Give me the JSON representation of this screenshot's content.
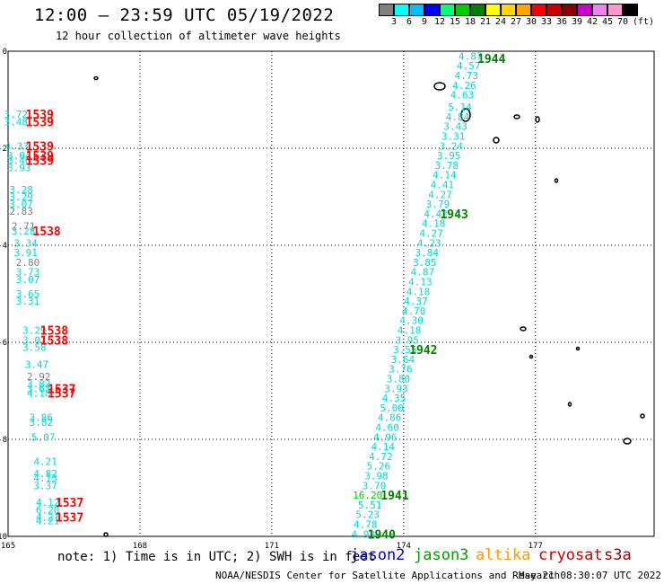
{
  "header": {
    "title": "12:00 — 23:59 UTC 05/19/2022",
    "subtitle": "12 hour collection of altimeter wave heights"
  },
  "legend": {
    "unit": "(ft)",
    "colors": [
      "#808080",
      "#00ffff",
      "#00bfff",
      "#0000ff",
      "#00ff7f",
      "#00cc00",
      "#008000",
      "#ffff00",
      "#ffd700",
      "#ffa500",
      "#ff0000",
      "#cc0000",
      "#8b0000",
      "#cc00cc",
      "#ee82ee",
      "#ff99cc",
      "#000000"
    ],
    "labels": [
      "3",
      "6",
      "9",
      "12",
      "15",
      "18",
      "21",
      "24",
      "27",
      "30",
      "33",
      "36",
      "39",
      "42",
      "45",
      "70"
    ]
  },
  "map": {
    "lon_ticks": [
      {
        "label": "165",
        "lon": 165
      },
      {
        "label": "168",
        "lon": 168
      },
      {
        "label": "171",
        "lon": 171
      },
      {
        "label": "174",
        "lon": 174
      },
      {
        "label": "177",
        "lon": 177
      }
    ],
    "lat_ticks": [
      {
        "label": "0",
        "lat": 0
      },
      {
        "label": "-2",
        "lat": -2
      },
      {
        "label": "-4",
        "lat": -4
      },
      {
        "label": "-6",
        "lat": -6
      },
      {
        "label": "-8",
        "lat": -8
      },
      {
        "label": "-10",
        "lat": -10
      }
    ],
    "extent": {
      "lon_min": 165,
      "lon_max": 179.7,
      "lat_min": -10,
      "lat_max": 0
    }
  },
  "track_values": [
    {
      "text": "4.87",
      "lon": 175.52,
      "lat": -0.1,
      "color": "#00d8d8"
    },
    {
      "text": "4.57",
      "lon": 175.48,
      "lat": -0.3,
      "color": "#00d8d8"
    },
    {
      "text": "4.73",
      "lon": 175.43,
      "lat": -0.5,
      "color": "#00d8d8"
    },
    {
      "text": "4.26",
      "lon": 175.38,
      "lat": -0.7,
      "color": "#00d8d8"
    },
    {
      "text": "4.63",
      "lon": 175.33,
      "lat": -0.9,
      "color": "#00d8d8"
    },
    {
      "text": "5.14",
      "lon": 175.28,
      "lat": -1.15,
      "color": "#00d8d8"
    },
    {
      "text": "4.84",
      "lon": 175.23,
      "lat": -1.35,
      "color": "#00d8d8"
    },
    {
      "text": "3.43",
      "lon": 175.18,
      "lat": -1.55,
      "color": "#00d8d8"
    },
    {
      "text": "3.31",
      "lon": 175.13,
      "lat": -1.75,
      "color": "#00d8d8"
    },
    {
      "text": "3.24",
      "lon": 175.08,
      "lat": -1.95,
      "color": "#00d8d8"
    },
    {
      "text": "3.95",
      "lon": 175.03,
      "lat": -2.15,
      "color": "#00d8d8"
    },
    {
      "text": "3.78",
      "lon": 174.98,
      "lat": -2.35,
      "color": "#00d8d8"
    },
    {
      "text": "4.14",
      "lon": 174.93,
      "lat": -2.55,
      "color": "#00d8d8"
    },
    {
      "text": "4.41",
      "lon": 174.88,
      "lat": -2.75,
      "color": "#00d8d8"
    },
    {
      "text": "4.27",
      "lon": 174.83,
      "lat": -2.95,
      "color": "#00d8d8"
    },
    {
      "text": "3.79",
      "lon": 174.78,
      "lat": -3.15,
      "color": "#00d8d8"
    },
    {
      "text": "4.42",
      "lon": 174.73,
      "lat": -3.35,
      "color": "#00d8d8"
    },
    {
      "text": "4.18",
      "lon": 174.68,
      "lat": -3.55,
      "color": "#00d8d8"
    },
    {
      "text": "4.27",
      "lon": 174.63,
      "lat": -3.75,
      "color": "#00d8d8"
    },
    {
      "text": "4.23",
      "lon": 174.58,
      "lat": -3.95,
      "color": "#00d8d8"
    },
    {
      "text": "3.84",
      "lon": 174.53,
      "lat": -4.15,
      "color": "#00d8d8"
    },
    {
      "text": "3.85",
      "lon": 174.48,
      "lat": -4.35,
      "color": "#00d8d8"
    },
    {
      "text": "4.87",
      "lon": 174.43,
      "lat": -4.55,
      "color": "#00d8d8"
    },
    {
      "text": "4.13",
      "lon": 174.38,
      "lat": -4.75,
      "color": "#00d8d8"
    },
    {
      "text": "4.18",
      "lon": 174.33,
      "lat": -4.95,
      "color": "#00d8d8"
    },
    {
      "text": "4.37",
      "lon": 174.28,
      "lat": -5.15,
      "color": "#00d8d8"
    },
    {
      "text": "4.70",
      "lon": 174.23,
      "lat": -5.35,
      "color": "#00d8d8"
    },
    {
      "text": "4.30",
      "lon": 174.18,
      "lat": -5.55,
      "color": "#00d8d8"
    },
    {
      "text": "4.18",
      "lon": 174.13,
      "lat": -5.75,
      "color": "#00d8d8"
    },
    {
      "text": "3.95",
      "lon": 174.08,
      "lat": -5.95,
      "color": "#00d8d8"
    },
    {
      "text": "3.55",
      "lon": 174.03,
      "lat": -6.15,
      "color": "#00d8d8"
    },
    {
      "text": "3.64",
      "lon": 173.98,
      "lat": -6.35,
      "color": "#00d8d8"
    },
    {
      "text": "3.76",
      "lon": 173.93,
      "lat": -6.55,
      "color": "#00d8d8"
    },
    {
      "text": "3.80",
      "lon": 173.88,
      "lat": -6.75,
      "color": "#00d8d8"
    },
    {
      "text": "3.93",
      "lon": 173.83,
      "lat": -6.95,
      "color": "#00d8d8"
    },
    {
      "text": "4.35",
      "lon": 173.78,
      "lat": -7.15,
      "color": "#00d8d8"
    },
    {
      "text": "5.00",
      "lon": 173.73,
      "lat": -7.35,
      "color": "#00d8d8"
    },
    {
      "text": "4.86",
      "lon": 173.68,
      "lat": -7.55,
      "color": "#00d8d8"
    },
    {
      "text": "4.60",
      "lon": 173.63,
      "lat": -7.75,
      "color": "#00d8d8"
    },
    {
      "text": "4.96",
      "lon": 173.58,
      "lat": -7.95,
      "color": "#00d8d8"
    },
    {
      "text": "4.14",
      "lon": 173.53,
      "lat": -8.15,
      "color": "#00d8d8"
    },
    {
      "text": "4.72",
      "lon": 173.48,
      "lat": -8.35,
      "color": "#00d8d8"
    },
    {
      "text": "5.26",
      "lon": 173.43,
      "lat": -8.55,
      "color": "#00d8d8"
    },
    {
      "text": "3.98",
      "lon": 173.38,
      "lat": -8.75,
      "color": "#00d8d8"
    },
    {
      "text": "3.70",
      "lon": 173.33,
      "lat": -8.95,
      "color": "#00d8d8"
    },
    {
      "text": "16.20",
      "lon": 173.18,
      "lat": -9.15,
      "color": "#00cc00"
    },
    {
      "text": "5.51",
      "lon": 173.23,
      "lat": -9.35,
      "color": "#00d8d8"
    },
    {
      "text": "5.23",
      "lon": 173.18,
      "lat": -9.55,
      "color": "#00d8d8"
    },
    {
      "text": "4.78",
      "lon": 173.13,
      "lat": -9.75,
      "color": "#00d8d8"
    },
    {
      "text": "4.93",
      "lon": 173.08,
      "lat": -9.95,
      "color": "#00d8d8"
    },
    {
      "text": "3.72",
      "lon": 165.18,
      "lat": -1.3,
      "color": "#00d8d8"
    },
    {
      "text": "3.48",
      "lon": 165.18,
      "lat": -1.45,
      "color": "#00d8d8"
    },
    {
      "text": "4.33",
      "lon": 165.2,
      "lat": -1.95,
      "color": "#00d8d8"
    },
    {
      "text": "3.04",
      "lon": 165.25,
      "lat": -2.15,
      "color": "#00d8d8"
    },
    {
      "text": "3.40",
      "lon": 165.25,
      "lat": -2.25,
      "color": "#00d8d8"
    },
    {
      "text": "3.93",
      "lon": 165.25,
      "lat": -2.4,
      "color": "#00d8d8"
    },
    {
      "text": "3.28",
      "lon": 165.3,
      "lat": -2.85,
      "color": "#00d8d8"
    },
    {
      "text": "3.29",
      "lon": 165.3,
      "lat": -3.0,
      "color": "#00d8d8"
    },
    {
      "text": "3.07",
      "lon": 165.3,
      "lat": -3.15,
      "color": "#00d8d8"
    },
    {
      "text": "2.83",
      "lon": 165.3,
      "lat": -3.3,
      "color": "#808080"
    },
    {
      "text": "2.71",
      "lon": 165.35,
      "lat": -3.6,
      "color": "#808080"
    },
    {
      "text": "3.28",
      "lon": 165.35,
      "lat": -3.7,
      "color": "#00d8d8"
    },
    {
      "text": "3.34",
      "lon": 165.4,
      "lat": -3.95,
      "color": "#00d8d8"
    },
    {
      "text": "3.91",
      "lon": 165.4,
      "lat": -4.15,
      "color": "#00d8d8"
    },
    {
      "text": "2.80",
      "lon": 165.45,
      "lat": -4.35,
      "color": "#808080"
    },
    {
      "text": "3.73",
      "lon": 165.45,
      "lat": -4.55,
      "color": "#00d8d8"
    },
    {
      "text": "3.07",
      "lon": 165.45,
      "lat": -4.7,
      "color": "#00d8d8"
    },
    {
      "text": "3.65",
      "lon": 165.45,
      "lat": -5.0,
      "color": "#00d8d8"
    },
    {
      "text": "3.31",
      "lon": 165.45,
      "lat": -5.15,
      "color": "#00d8d8"
    },
    {
      "text": "3.29",
      "lon": 165.6,
      "lat": -5.75,
      "color": "#00d8d8"
    },
    {
      "text": "3.02",
      "lon": 165.6,
      "lat": -5.95,
      "color": "#00d8d8"
    },
    {
      "text": "3.58",
      "lon": 165.6,
      "lat": -6.1,
      "color": "#00d8d8"
    },
    {
      "text": "3.47",
      "lon": 165.65,
      "lat": -6.45,
      "color": "#00d8d8"
    },
    {
      "text": "2.92",
      "lon": 165.7,
      "lat": -6.7,
      "color": "#808080"
    },
    {
      "text": "3.82",
      "lon": 165.7,
      "lat": -6.85,
      "color": "#00d8d8"
    },
    {
      "text": "3.63",
      "lon": 165.7,
      "lat": -6.95,
      "color": "#00d8d8"
    },
    {
      "text": "4.18",
      "lon": 165.7,
      "lat": -7.05,
      "color": "#00d8d8"
    },
    {
      "text": "3.86",
      "lon": 165.75,
      "lat": -7.55,
      "color": "#00d8d8"
    },
    {
      "text": "3.82",
      "lon": 165.75,
      "lat": -7.65,
      "color": "#00d8d8"
    },
    {
      "text": "5.07",
      "lon": 165.8,
      "lat": -7.95,
      "color": "#00d8d8"
    },
    {
      "text": "4.21",
      "lon": 165.85,
      "lat": -8.45,
      "color": "#00d8d8"
    },
    {
      "text": "4.82",
      "lon": 165.85,
      "lat": -8.7,
      "color": "#00d8d8"
    },
    {
      "text": "4.13",
      "lon": 165.85,
      "lat": -8.8,
      "color": "#00d8d8"
    },
    {
      "text": "3.37",
      "lon": 165.85,
      "lat": -8.95,
      "color": "#00d8d8"
    },
    {
      "text": "4.12",
      "lon": 165.9,
      "lat": -9.3,
      "color": "#00d8d8"
    },
    {
      "text": "6.20",
      "lon": 165.9,
      "lat": -9.45,
      "color": "#00d8d8"
    },
    {
      "text": "4.21",
      "lon": 165.9,
      "lat": -9.6,
      "color": "#00d8d8"
    },
    {
      "text": "4.21",
      "lon": 165.9,
      "lat": -9.68,
      "color": "#00d8d8"
    }
  ],
  "time_labels": [
    {
      "text": "1944",
      "lon": 176.0,
      "lat": -0.15,
      "color": "#008000"
    },
    {
      "text": "1943",
      "lon": 175.15,
      "lat": -3.35,
      "color": "#008000"
    },
    {
      "text": "1942",
      "lon": 174.45,
      "lat": -6.15,
      "color": "#008000"
    },
    {
      "text": "1941",
      "lon": 173.8,
      "lat": -9.15,
      "color": "#008000"
    },
    {
      "text": "1940",
      "lon": 173.5,
      "lat": -9.95,
      "color": "#008000"
    },
    {
      "text": "1539",
      "lon": 165.72,
      "lat": -1.3,
      "color": "#ff0000"
    },
    {
      "text": "1539",
      "lon": 165.72,
      "lat": -1.45,
      "color": "#ff0000"
    },
    {
      "text": "1539",
      "lon": 165.72,
      "lat": -1.95,
      "color": "#ff0000"
    },
    {
      "text": "1539",
      "lon": 165.72,
      "lat": -2.15,
      "color": "#ff0000"
    },
    {
      "text": "1539",
      "lon": 165.72,
      "lat": -2.25,
      "color": "#ff0000"
    },
    {
      "text": "1538",
      "lon": 165.88,
      "lat": -3.7,
      "color": "#ff0000"
    },
    {
      "text": "1538",
      "lon": 166.05,
      "lat": -5.75,
      "color": "#ff0000"
    },
    {
      "text": "1538",
      "lon": 166.05,
      "lat": -5.95,
      "color": "#ff0000"
    },
    {
      "text": "1537",
      "lon": 166.22,
      "lat": -6.95,
      "color": "#ff0000"
    },
    {
      "text": "1537",
      "lon": 166.22,
      "lat": -7.05,
      "color": "#ff0000"
    },
    {
      "text": "1537",
      "lon": 166.4,
      "lat": -9.3,
      "color": "#ff0000"
    },
    {
      "text": "1537",
      "lon": 166.4,
      "lat": -9.6,
      "color": "#ff0000"
    }
  ],
  "footer": {
    "note": "note: 1) Time is in UTC; 2) SWH is in feet",
    "satellites": [
      {
        "name": "jason2",
        "color": "#0000cc"
      },
      {
        "name": "jason3",
        "color": "#00a000"
      },
      {
        "name": "altika",
        "color": "#ff9900"
      },
      {
        "name": "cryosat",
        "color": "#cc0000"
      },
      {
        "name": "s3a",
        "color": "#990000"
      }
    ],
    "credit": "NOAA/NESDIS Center for Satellite Applications and Research",
    "timestamp": "May 21 08:30:07 UTC 2022"
  }
}
